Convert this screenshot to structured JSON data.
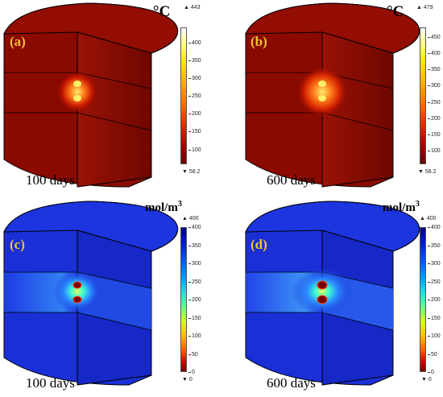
{
  "panels": [
    {
      "label": "(a)",
      "days": "100 days",
      "unit": "°C",
      "unit_sup": "",
      "scale": "temperature",
      "max_marker": "▲ 443",
      "min_marker": "▼ 58.2",
      "ticks": [
        "400",
        "350",
        "300",
        "250",
        "200",
        "150",
        "100"
      ],
      "tick_values": [
        400,
        350,
        300,
        250,
        200,
        150,
        100
      ],
      "range": [
        58.2,
        443
      ]
    },
    {
      "label": "(b)",
      "days": "600 days",
      "unit": "°C",
      "unit_sup": "",
      "scale": "temperature",
      "max_marker": "▲ 479",
      "min_marker": "▼ 58.2",
      "ticks": [
        "450",
        "400",
        "350",
        "300",
        "250",
        "200",
        "150",
        "100"
      ],
      "tick_values": [
        450,
        400,
        350,
        300,
        250,
        200,
        150,
        100
      ],
      "range": [
        58.2,
        479
      ]
    },
    {
      "label": "(c)",
      "days": "100 days",
      "unit": "mol/m",
      "unit_sup": "3",
      "scale": "concentration",
      "max_marker": "▲ 400",
      "min_marker": "▼ 0",
      "ticks": [
        "400",
        "350",
        "300",
        "250",
        "200",
        "150",
        "100",
        "50",
        "0"
      ],
      "tick_values": [
        400,
        350,
        300,
        250,
        200,
        150,
        100,
        50,
        0
      ],
      "range": [
        0,
        400
      ]
    },
    {
      "label": "(d)",
      "days": "600 days",
      "unit": "mol/m",
      "unit_sup": "3",
      "scale": "concentration",
      "max_marker": "▲ 400",
      "min_marker": "▼ 0",
      "ticks": [
        "400",
        "350",
        "300",
        "250",
        "200",
        "150",
        "100",
        "50",
        "0"
      ],
      "tick_values": [
        400,
        350,
        300,
        250,
        200,
        150,
        100,
        50,
        0
      ],
      "range": [
        0,
        400
      ]
    }
  ],
  "colors": {
    "temp_body": "#8b0a00",
    "conc_body": "#1a2fd6",
    "hotspot": "#ffee66",
    "panel_label": "#f2c230"
  }
}
